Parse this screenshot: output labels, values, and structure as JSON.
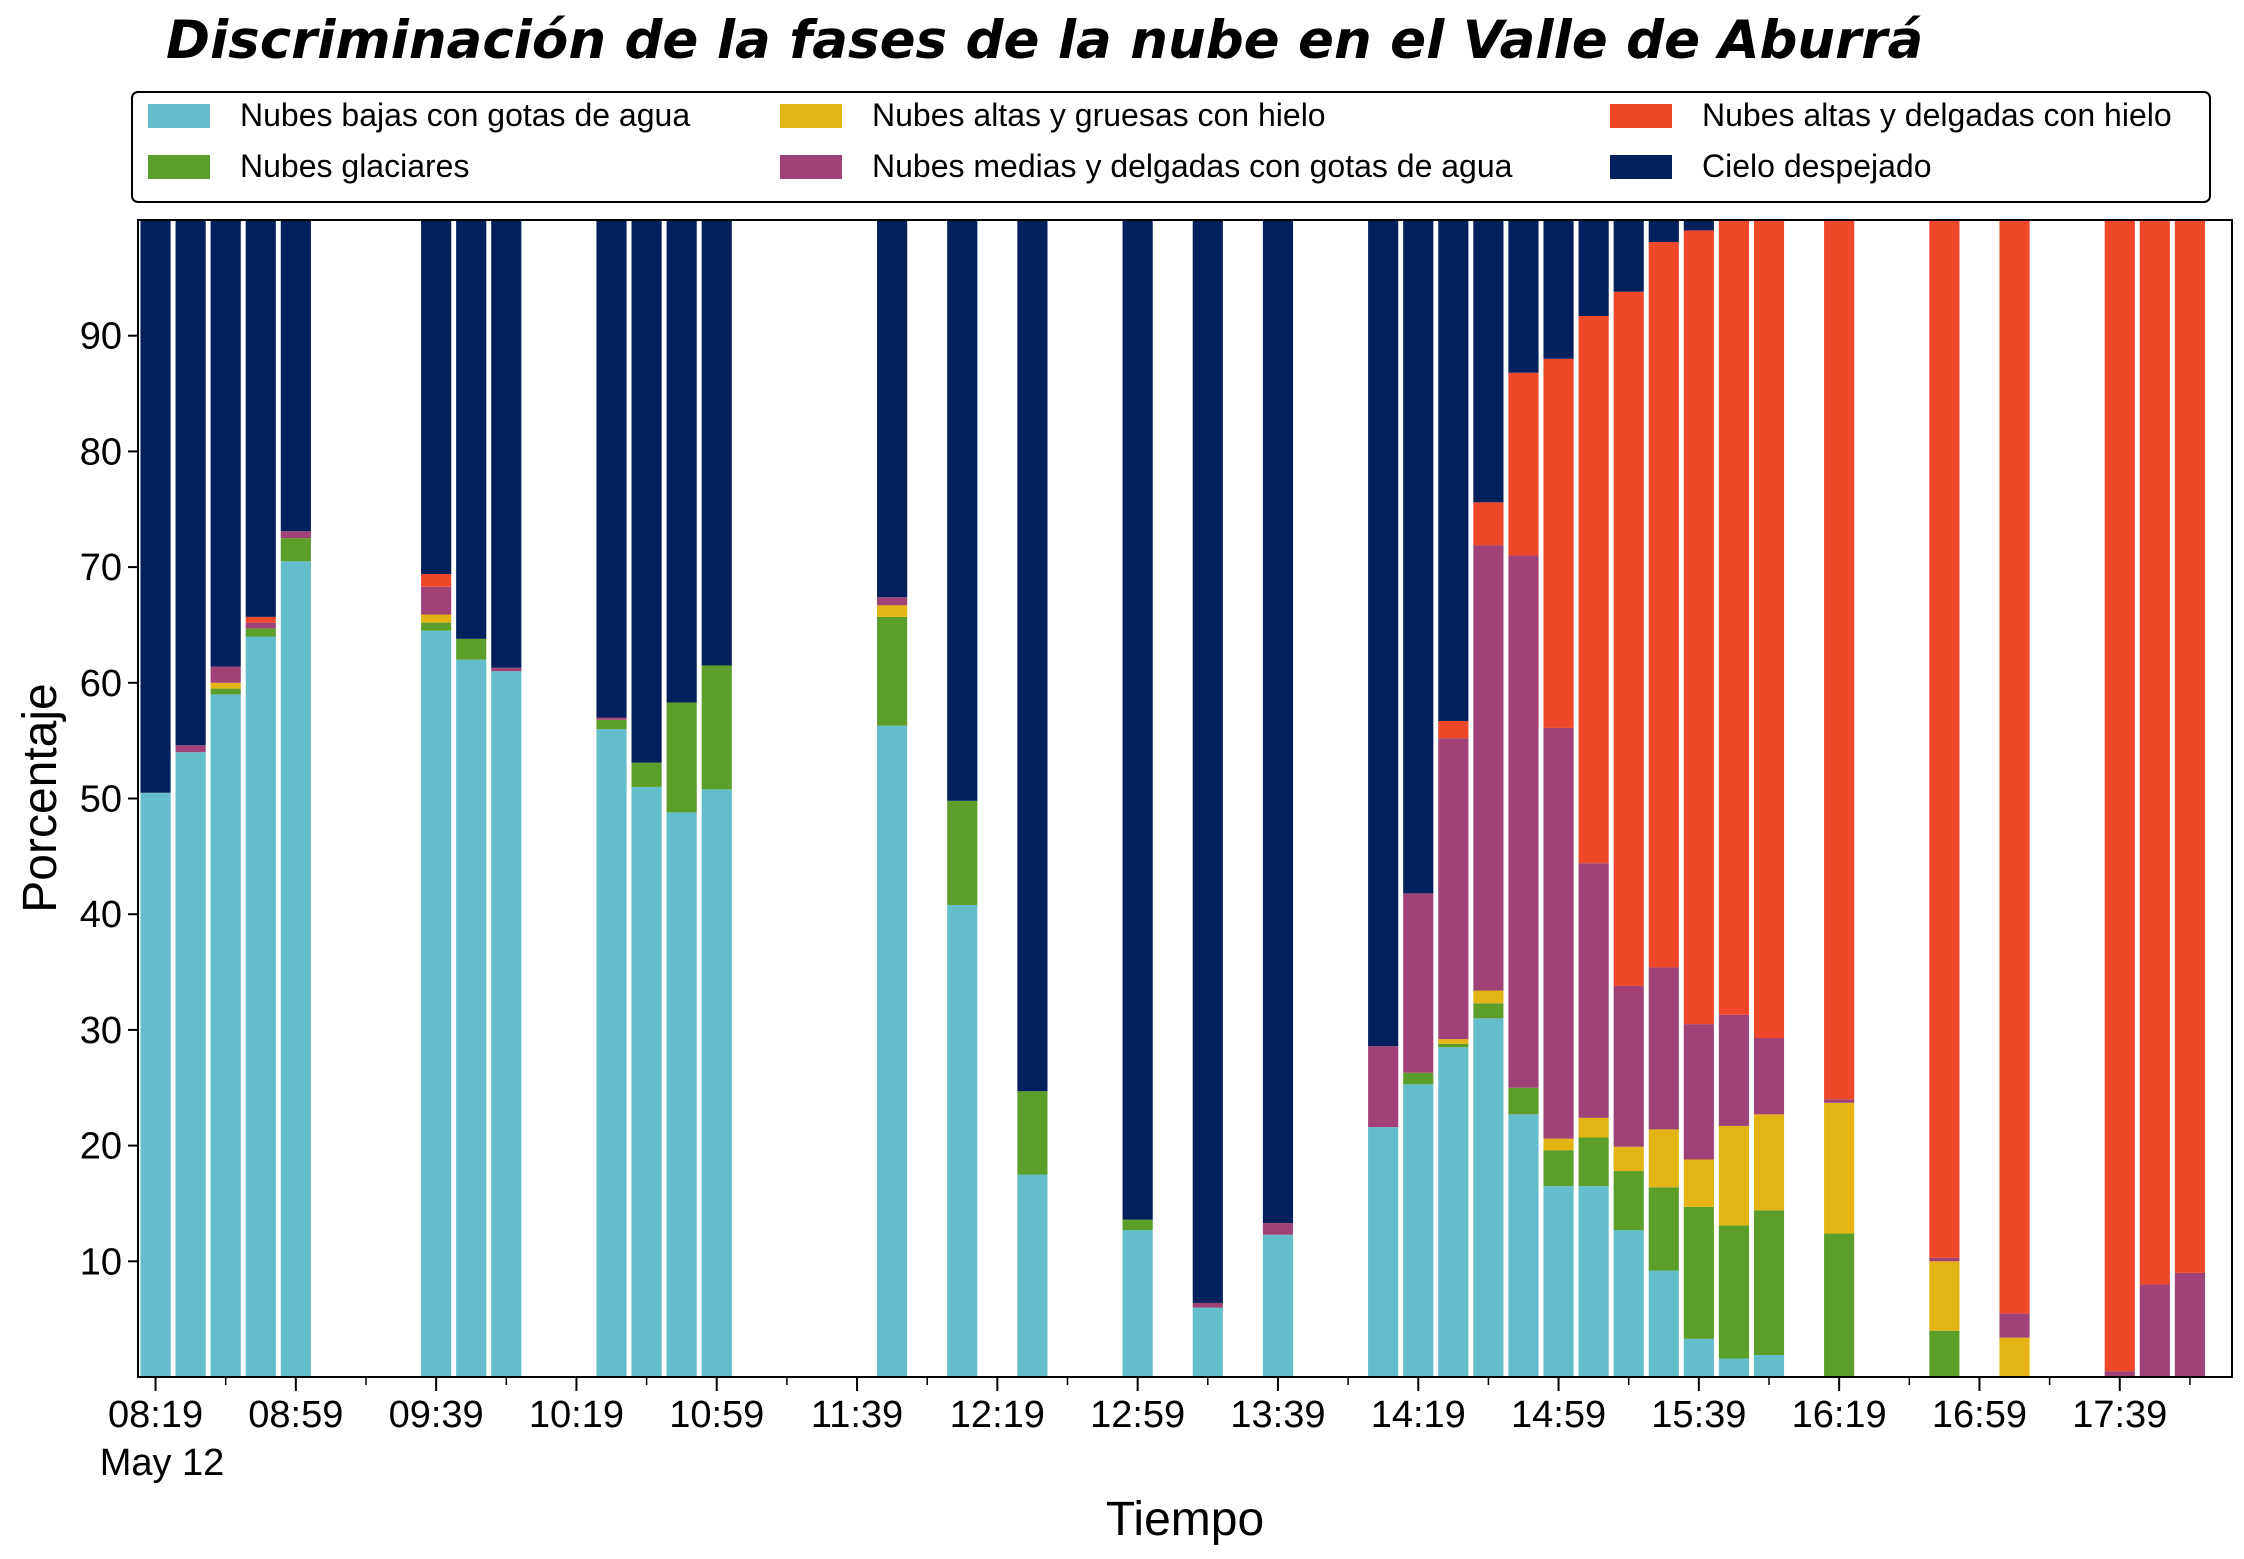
{
  "chart_data": {
    "type": "bar",
    "stacked": true,
    "title": "Discriminación de la fases de la nube en el Valle de Aburrá",
    "xlabel": "Tiempo",
    "ylabel": "Porcentaje",
    "ylim": [
      0,
      100
    ],
    "yticks": [
      10,
      20,
      30,
      40,
      50,
      60,
      70,
      80,
      90
    ],
    "grid": false,
    "legend_placement": "top",
    "date_label": "May 12",
    "x_range_minutes": [
      494,
      1091
    ],
    "xtick_minutes": [
      499,
      539,
      579,
      619,
      659,
      699,
      739,
      779,
      819,
      859,
      899,
      939,
      979,
      1019,
      1059
    ],
    "xtick_labels": [
      "08:19",
      "08:59",
      "09:39",
      "10:19",
      "10:59",
      "11:39",
      "12:19",
      "12:59",
      "13:39",
      "14:19",
      "14:59",
      "15:39",
      "16:19",
      "16:59",
      "17:39"
    ],
    "times": [
      "08:19",
      "08:29",
      "08:39",
      "08:49",
      "08:59",
      "09:39",
      "09:49",
      "09:59",
      "10:29",
      "10:39",
      "10:49",
      "10:59",
      "11:49",
      "12:09",
      "12:29",
      "12:59",
      "13:19",
      "13:39",
      "14:09",
      "14:19",
      "14:29",
      "14:39",
      "14:49",
      "14:59",
      "15:09",
      "15:19",
      "15:29",
      "15:39",
      "15:49",
      "15:59",
      "16:19",
      "16:49",
      "17:09",
      "17:39",
      "17:49",
      "17:59"
    ],
    "series": [
      {
        "name": "Nubes bajas con gotas de agua",
        "color": "#63bdca",
        "values": [
          50.5,
          54,
          59,
          64,
          70.5,
          64.5,
          62,
          61,
          56,
          51,
          48.8,
          50.8,
          56.3,
          40.8,
          17.5,
          12.7,
          6,
          12.3,
          21.6,
          25.3,
          28.5,
          31,
          22.7,
          16.5,
          16.5,
          12.7,
          9.2,
          3.3,
          1.6,
          1.9,
          0,
          0,
          0,
          0,
          0,
          0
        ]
      },
      {
        "name": "Nubes glaciares",
        "color": "#5b9e2a",
        "values": [
          0,
          0,
          0.5,
          0.7,
          2,
          0.7,
          1.8,
          0,
          0.8,
          2.1,
          9.5,
          10.7,
          9.4,
          9,
          7.2,
          0.9,
          0,
          0,
          0,
          1,
          0.3,
          1.3,
          2.3,
          3.1,
          4.2,
          5.1,
          7.2,
          11.4,
          11.5,
          12.5,
          12.4,
          4,
          0,
          0,
          0,
          0
        ]
      },
      {
        "name": "Nubes altas y gruesas con hielo",
        "color": "#e4b414",
        "values": [
          0,
          0,
          0.5,
          0,
          0,
          0.7,
          0,
          0,
          0,
          0,
          0,
          0,
          1,
          0,
          0,
          0,
          0,
          0,
          0,
          0,
          0.4,
          1.1,
          0,
          1,
          1.7,
          2.1,
          5,
          4.1,
          8.6,
          8.3,
          11.3,
          6,
          3.4,
          0,
          0,
          0
        ]
      },
      {
        "name": "Nubes medias y delgadas con gotas de agua",
        "color": "#a04277",
        "values": [
          0,
          0.6,
          1.4,
          0.5,
          0.6,
          2.4,
          0,
          0.3,
          0.2,
          0,
          0,
          0,
          0.7,
          0,
          0,
          0,
          0.4,
          1,
          7,
          15.5,
          26,
          38.5,
          46,
          35.5,
          22,
          13.9,
          14,
          11.7,
          9.6,
          6.6,
          0.3,
          0.3,
          2.1,
          0.5,
          8,
          9
        ]
      },
      {
        "name": "Nubes altas y delgadas con hielo",
        "color": "#ee4829",
        "values": [
          0,
          0,
          0,
          0.5,
          0,
          1.1,
          0,
          0,
          0,
          0,
          0,
          0,
          0,
          0,
          0,
          0,
          0,
          0,
          0,
          0,
          1.5,
          3.7,
          15.8,
          31.9,
          47.3,
          60,
          62.7,
          68.6,
          68.7,
          70.7,
          76,
          89.7,
          94.5,
          99.5,
          92,
          91
        ]
      },
      {
        "name": "Cielo despejado",
        "color": "#02205c",
        "values": [
          49.5,
          45.4,
          38.6,
          34.3,
          26.9,
          30.6,
          36.2,
          38.7,
          43,
          46.9,
          41.7,
          38.5,
          32.6,
          50.2,
          75.3,
          86.4,
          93.6,
          86.7,
          71.4,
          58.2,
          43.3,
          24.4,
          13.2,
          12,
          8.3,
          6.2,
          1.9,
          0.9,
          0,
          0,
          0,
          0,
          0,
          0,
          0,
          0
        ]
      }
    ]
  }
}
